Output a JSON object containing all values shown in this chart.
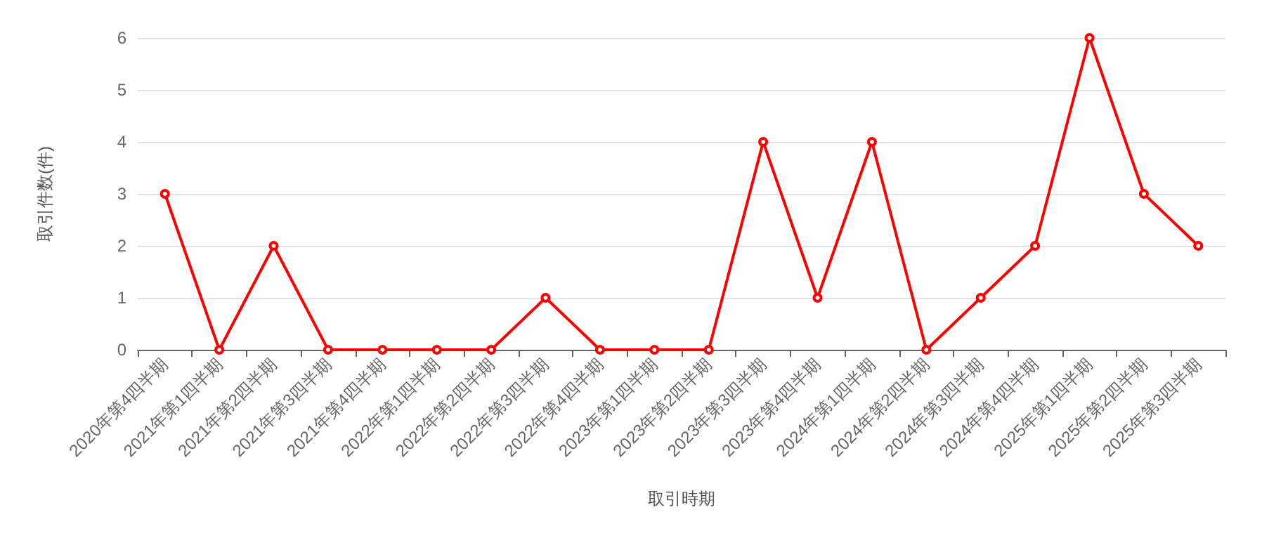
{
  "chart_data": {
    "type": "line",
    "xlabel": "取引時期",
    "ylabel": "取引件数(件)",
    "categories": [
      "2020年第4四半期",
      "2021年第1四半期",
      "2021年第2四半期",
      "2021年第3四半期",
      "2021年第4四半期",
      "2022年第1四半期",
      "2022年第2四半期",
      "2022年第3四半期",
      "2022年第4四半期",
      "2023年第1四半期",
      "2023年第2四半期",
      "2023年第3四半期",
      "2023年第4四半期",
      "2024年第1四半期",
      "2024年第2四半期",
      "2024年第3四半期",
      "2024年第4四半期",
      "2025年第1四半期",
      "2025年第2四半期",
      "2025年第3四半期"
    ],
    "series": [
      {
        "color": "#ff0000",
        "values": [
          3,
          0,
          2,
          0,
          0,
          0,
          0,
          1,
          0,
          0,
          0,
          4,
          1,
          4,
          0,
          1,
          2,
          6,
          3,
          2
        ]
      }
    ],
    "ylim": [
      0,
      6
    ],
    "yticks": [
      0,
      1,
      2,
      3,
      4,
      5,
      6
    ],
    "grid": "y",
    "marker": "circle",
    "line_style": "solid"
  }
}
